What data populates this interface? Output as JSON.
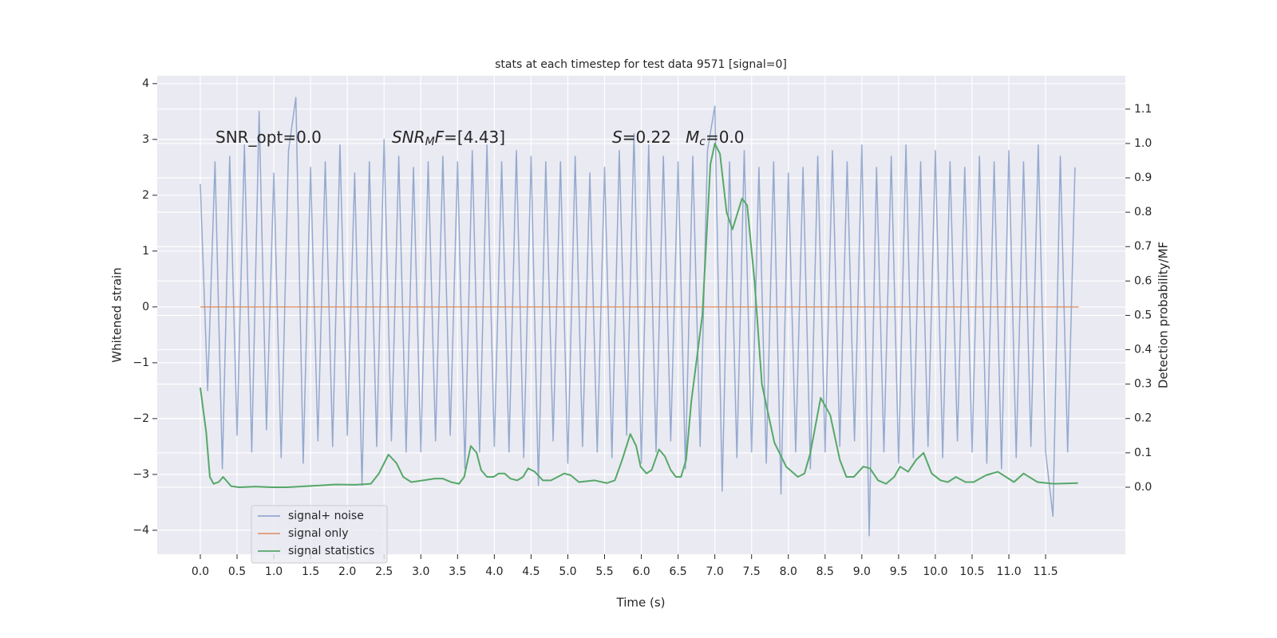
{
  "chart_data": {
    "type": "line",
    "title": "stats at each timestep for test data 9571 [signal=0]",
    "xlabel": "Time (s)",
    "ylabel": "Whitened strain",
    "y2label": "Detection probability/MF",
    "xlim": [
      -0.586,
      12.585
    ],
    "ylim": [
      -4.43,
      4.14
    ],
    "y2lim": [
      -0.195,
      1.197
    ],
    "xticks": [
      {
        "value": 0,
        "label": "0.0"
      },
      0.5,
      {
        "value": 1,
        "label": "1.0"
      },
      1.5,
      {
        "value": 2,
        "label": "2.0"
      },
      2.5,
      {
        "value": 3,
        "label": "3.0"
      },
      3.5,
      {
        "value": 4,
        "label": "4.0"
      },
      4.5,
      {
        "value": 5,
        "label": "5.0"
      },
      5.5,
      {
        "value": 6,
        "label": "6.0"
      },
      6.5,
      {
        "value": 7,
        "label": "7.0"
      },
      7.5,
      {
        "value": 8,
        "label": "8.0"
      },
      8.5,
      {
        "value": 9,
        "label": "9.0"
      },
      9.5,
      {
        "value": 10,
        "label": "10.0"
      },
      10.5,
      {
        "value": 11,
        "label": "11.0"
      },
      11.5
    ],
    "yticks": [
      {
        "value": -4,
        "label": "−4"
      },
      {
        "value": -3,
        "label": "−3"
      },
      {
        "value": -2,
        "label": "−2"
      },
      {
        "value": -1,
        "label": "−1"
      },
      0,
      1,
      2,
      3,
      4
    ],
    "y2ticks": [
      {
        "value": 0,
        "label": "0.0"
      },
      0.1,
      0.2,
      0.3,
      0.4,
      0.5,
      0.6,
      0.7,
      0.8,
      0.9,
      {
        "value": 1,
        "label": "1.0"
      },
      1.1
    ],
    "grid": true,
    "legend": "lower left",
    "annotations": [
      {
        "parts": [
          {
            "text": "SNR_opt=0.0"
          }
        ]
      },
      {
        "parts": [
          {
            "text": "SNR",
            "italic": true
          },
          {
            "text": "M",
            "italic": true,
            "sub": true
          },
          {
            "text": "F",
            "italic": true
          },
          {
            "text": "=[4.43]"
          }
        ]
      },
      {
        "parts": [
          {
            "text": "S",
            "italic": true
          },
          {
            "text": "=0.22"
          }
        ]
      },
      {
        "parts": [
          {
            "text": "M",
            "italic": true
          },
          {
            "text": "c",
            "italic": true,
            "sub": true
          },
          {
            "text": "=0.0"
          }
        ]
      }
    ],
    "series": [
      {
        "name": "signal+ noise",
        "color": "#4c72b0",
        "opacity": 0.55,
        "axis": "y",
        "x": [
          0,
          0.1,
          0.2,
          0.3,
          0.4,
          0.5,
          0.6,
          0.7,
          0.8,
          0.9,
          1,
          1.1,
          1.2,
          1.3,
          1.4,
          1.5,
          1.6,
          1.7,
          1.8,
          1.9,
          2,
          2.1,
          2.2,
          2.3,
          2.4,
          2.5,
          2.6,
          2.7,
          2.8,
          2.9,
          3,
          3.1,
          3.2,
          3.3,
          3.4,
          3.5,
          3.6,
          3.7,
          3.8,
          3.9,
          4,
          4.1,
          4.2,
          4.3,
          4.4,
          4.5,
          4.6,
          4.7,
          4.8,
          4.9,
          5,
          5.1,
          5.2,
          5.3,
          5.4,
          5.5,
          5.6,
          5.7,
          5.8,
          5.9,
          6,
          6.1,
          6.2,
          6.3,
          6.4,
          6.5,
          6.6,
          6.7,
          6.8,
          6.9,
          7,
          7.1,
          7.2,
          7.3,
          7.4,
          7.5,
          7.6,
          7.7,
          7.8,
          7.9,
          8,
          8.1,
          8.2,
          8.3,
          8.4,
          8.5,
          8.6,
          8.7,
          8.8,
          8.9,
          9,
          9.1,
          9.2,
          9.3,
          9.4,
          9.5,
          9.6,
          9.7,
          9.8,
          9.9,
          10,
          10.1,
          10.2,
          10.3,
          10.4,
          10.5,
          10.6,
          10.7,
          10.8,
          10.9,
          11,
          11.1,
          11.2,
          11.3,
          11.4,
          11.5,
          11.6,
          11.7,
          11.8,
          11.9
        ],
        "values": [
          2.2,
          -1.5,
          2.6,
          -2.9,
          2.7,
          -2.3,
          2.9,
          -2.6,
          3.5,
          -2.2,
          2.4,
          -2.7,
          2.8,
          3.75,
          -2.8,
          2.5,
          -2.4,
          2.6,
          -2.5,
          2.9,
          -2.3,
          2.4,
          -3.2,
          2.6,
          -2.5,
          3.0,
          -2.4,
          2.7,
          -2.6,
          2.5,
          -2.6,
          2.6,
          -2.4,
          2.7,
          -2.3,
          2.6,
          -2.9,
          2.8,
          -2.6,
          2.9,
          -2.5,
          2.6,
          -2.6,
          2.8,
          -2.7,
          2.7,
          -3.2,
          2.6,
          -2.4,
          2.6,
          -2.8,
          2.7,
          -2.5,
          2.4,
          -2.6,
          2.5,
          -2.7,
          2.8,
          -2.3,
          3.1,
          -2.8,
          2.9,
          -2.6,
          2.7,
          -2.4,
          2.6,
          -2.9,
          2.7,
          -2.5,
          2.8,
          3.6,
          -3.3,
          2.6,
          -2.7,
          2.8,
          -2.6,
          2.5,
          -2.8,
          2.6,
          -3.35,
          2.4,
          -2.6,
          2.5,
          -2.9,
          2.7,
          -2.6,
          2.8,
          -2.5,
          2.6,
          -2.4,
          2.9,
          -4.1,
          2.5,
          -2.6,
          2.7,
          -2.8,
          2.9,
          -2.7,
          2.6,
          -2.5,
          2.8,
          -2.7,
          2.6,
          -2.4,
          2.5,
          -2.6,
          2.7,
          -2.8,
          2.6,
          -2.9,
          2.8,
          -2.7,
          2.6,
          -2.5,
          2.9,
          -2.6,
          -3.75,
          2.7,
          -2.6,
          2.5
        ]
      },
      {
        "name": "signal only",
        "color": "#dd8452",
        "opacity": 0.8,
        "axis": "y",
        "x": [
          0,
          11.95
        ],
        "values": [
          0,
          0
        ]
      },
      {
        "name": "signal statistics",
        "color": "#55a868",
        "opacity": 1,
        "axis": "y2",
        "x": [
          0,
          0.08,
          0.13,
          0.18,
          0.25,
          0.31,
          0.42,
          0.53,
          0.75,
          0.97,
          1.18,
          1.62,
          1.84,
          2.11,
          2.32,
          2.43,
          2.56,
          2.67,
          2.76,
          2.87,
          3.03,
          3.19,
          3.3,
          3.41,
          3.52,
          3.59,
          3.68,
          3.76,
          3.82,
          3.9,
          3.99,
          4.06,
          4.14,
          4.22,
          4.31,
          4.39,
          4.46,
          4.55,
          4.66,
          4.77,
          4.95,
          5.04,
          5.15,
          5.36,
          5.53,
          5.64,
          5.74,
          5.85,
          5.93,
          5.99,
          6.07,
          6.14,
          6.24,
          6.32,
          6.4,
          6.47,
          6.54,
          6.61,
          6.68,
          6.83,
          6.94,
          7.0,
          7.07,
          7.16,
          7.24,
          7.37,
          7.44,
          7.54,
          7.64,
          7.81,
          7.97,
          8.13,
          8.22,
          8.3,
          8.44,
          8.57,
          8.7,
          8.79,
          8.89,
          9.02,
          9.11,
          9.22,
          9.33,
          9.44,
          9.52,
          9.63,
          9.74,
          9.84,
          9.95,
          10.07,
          10.17,
          10.28,
          10.41,
          10.52,
          10.69,
          10.85,
          10.96,
          11.07,
          11.2,
          11.39,
          11.61,
          11.94
        ],
        "values": [
          0.29,
          0.16,
          0.03,
          0.01,
          0.015,
          0.03,
          0.003,
          0.0,
          0.002,
          0.0,
          0.0,
          0.005,
          0.008,
          0.007,
          0.01,
          0.04,
          0.095,
          0.07,
          0.03,
          0.015,
          0.02,
          0.025,
          0.025,
          0.015,
          0.01,
          0.03,
          0.12,
          0.1,
          0.05,
          0.03,
          0.03,
          0.04,
          0.04,
          0.025,
          0.02,
          0.03,
          0.055,
          0.045,
          0.02,
          0.02,
          0.04,
          0.035,
          0.015,
          0.02,
          0.012,
          0.02,
          0.08,
          0.155,
          0.12,
          0.06,
          0.04,
          0.05,
          0.11,
          0.09,
          0.05,
          0.03,
          0.03,
          0.08,
          0.25,
          0.5,
          0.94,
          1.0,
          0.97,
          0.8,
          0.75,
          0.84,
          0.82,
          0.6,
          0.3,
          0.13,
          0.06,
          0.03,
          0.04,
          0.1,
          0.26,
          0.21,
          0.08,
          0.03,
          0.03,
          0.06,
          0.055,
          0.02,
          0.01,
          0.03,
          0.06,
          0.045,
          0.08,
          0.1,
          0.04,
          0.02,
          0.015,
          0.03,
          0.015,
          0.015,
          0.035,
          0.045,
          0.03,
          0.015,
          0.04,
          0.015,
          0.01,
          0.012
        ]
      }
    ]
  }
}
